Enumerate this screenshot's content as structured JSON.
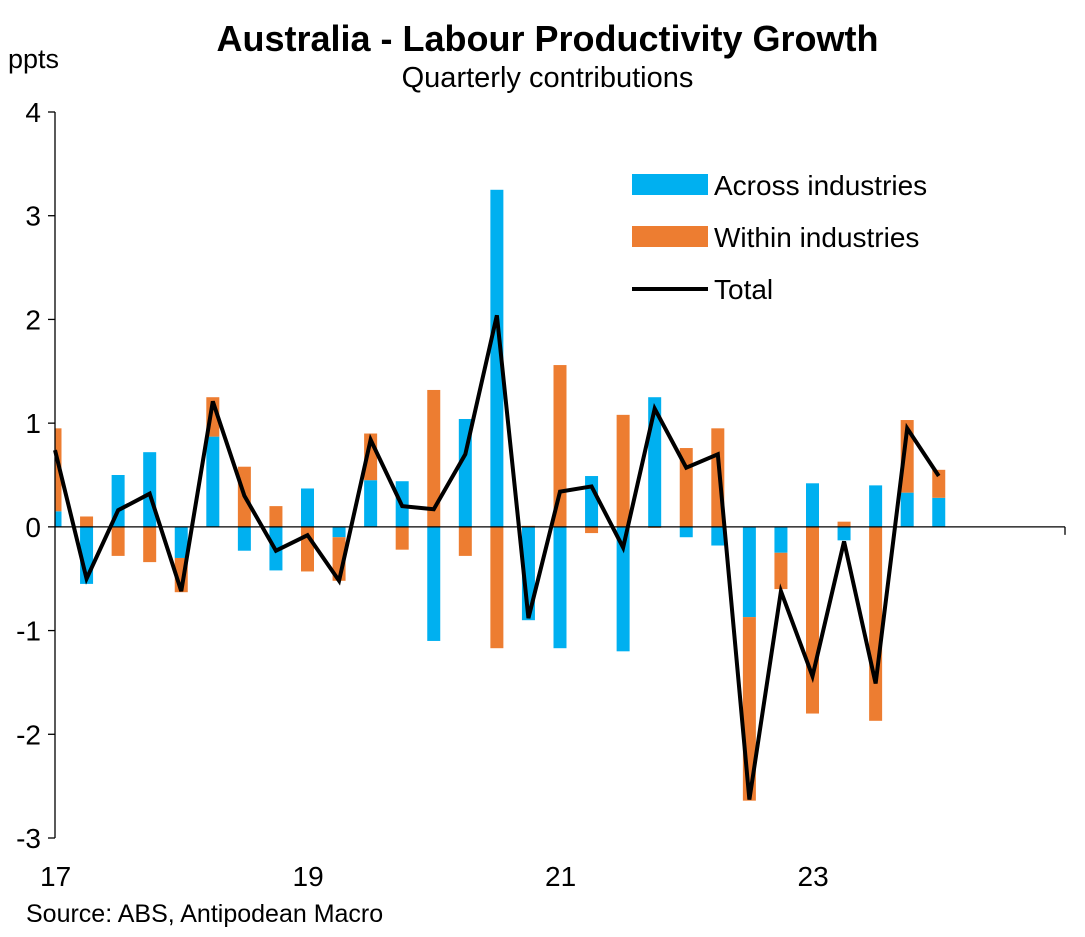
{
  "chart_data": {
    "type": "bar",
    "title": "Australia - Labour Productivity Growth",
    "subtitle": "Quarterly contributions",
    "ylabel": "ppts",
    "source": "Source: ABS, Antipodean Macro",
    "ylim": [
      -3,
      4
    ],
    "yticks": [
      "4",
      "3",
      "2",
      "1",
      "0",
      "-1",
      "-2",
      "-3"
    ],
    "ytick_values": [
      4,
      3,
      2,
      1,
      0,
      -1,
      -2,
      -3
    ],
    "xtick_labels": [
      "17",
      "19",
      "21",
      "23"
    ],
    "xtick_quarters": [
      0,
      8,
      16,
      24
    ],
    "n_slots": 32,
    "legend_position": "top-right",
    "series": [
      {
        "name": "Across industries",
        "kind": "bar",
        "color": "#00b0f0",
        "values": [
          0.15,
          -0.55,
          0.5,
          0.72,
          -0.3,
          0.87,
          -0.23,
          -0.42,
          0.37,
          -0.1,
          0.45,
          0.44,
          -1.1,
          1.04,
          3.25,
          -0.9,
          -1.17,
          0.49,
          -1.2,
          1.25,
          -0.1,
          -0.18,
          -0.87,
          -0.25,
          0.42,
          -0.13,
          0.4,
          0.33,
          0.28
        ]
      },
      {
        "name": "Within industries",
        "kind": "bar",
        "color": "#ed7d31",
        "values": [
          0.8,
          0.1,
          -0.28,
          -0.34,
          -0.33,
          0.38,
          0.58,
          0.2,
          -0.43,
          -0.42,
          0.45,
          -0.22,
          1.32,
          -0.28,
          -1.17,
          0.01,
          1.56,
          -0.06,
          1.08,
          -0.01,
          0.76,
          0.95,
          -1.77,
          -0.35,
          -1.8,
          0.05,
          -1.87,
          0.7,
          0.27
        ]
      },
      {
        "name": "Total",
        "kind": "line",
        "color": "#000000",
        "values": [
          0.74,
          -0.5,
          0.16,
          0.32,
          -0.62,
          1.21,
          0.3,
          -0.23,
          -0.08,
          -0.52,
          0.84,
          0.2,
          0.17,
          0.7,
          2.04,
          -0.88,
          0.34,
          0.39,
          -0.2,
          1.14,
          0.57,
          0.7,
          -2.63,
          -0.62,
          -1.44,
          -0.14,
          -1.51,
          0.95,
          0.49
        ]
      }
    ]
  }
}
